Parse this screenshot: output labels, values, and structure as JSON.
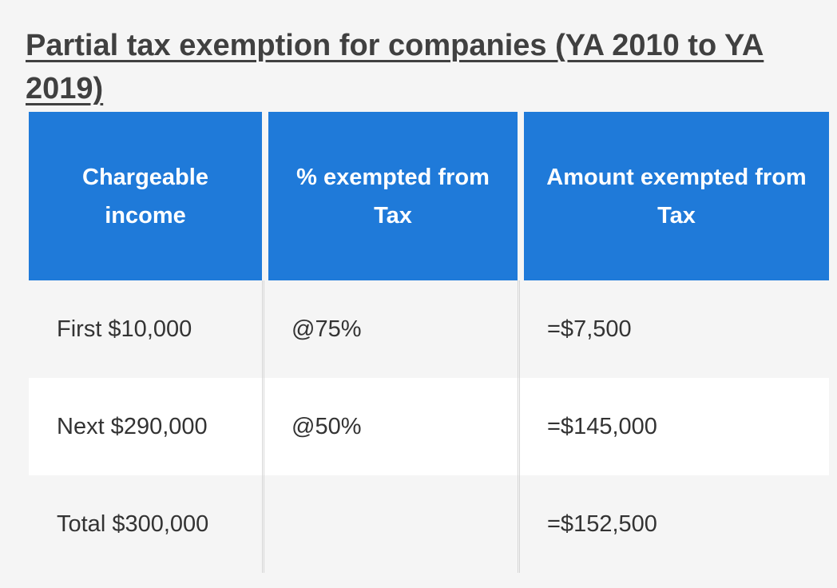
{
  "title": "Partial tax exemption for companies (YA 2010 to YA 2019)",
  "table": {
    "headers": [
      "Chargeable income",
      "% exempted from Tax",
      "Amount exempted from Tax"
    ],
    "rows": [
      {
        "income": "First $10,000",
        "percent": "@75%",
        "amount": "=$7,500"
      },
      {
        "income": "Next $290,000",
        "percent": "@50%",
        "amount": "=$145,000"
      },
      {
        "income": "Total $300,000",
        "percent": "",
        "amount": "=$152,500"
      }
    ]
  },
  "colors": {
    "header_bg": "#1f7ad9",
    "header_text": "#ffffff",
    "body_text": "#333333",
    "page_bg": "#f5f5f5",
    "stripe_bg": "#ffffff"
  }
}
